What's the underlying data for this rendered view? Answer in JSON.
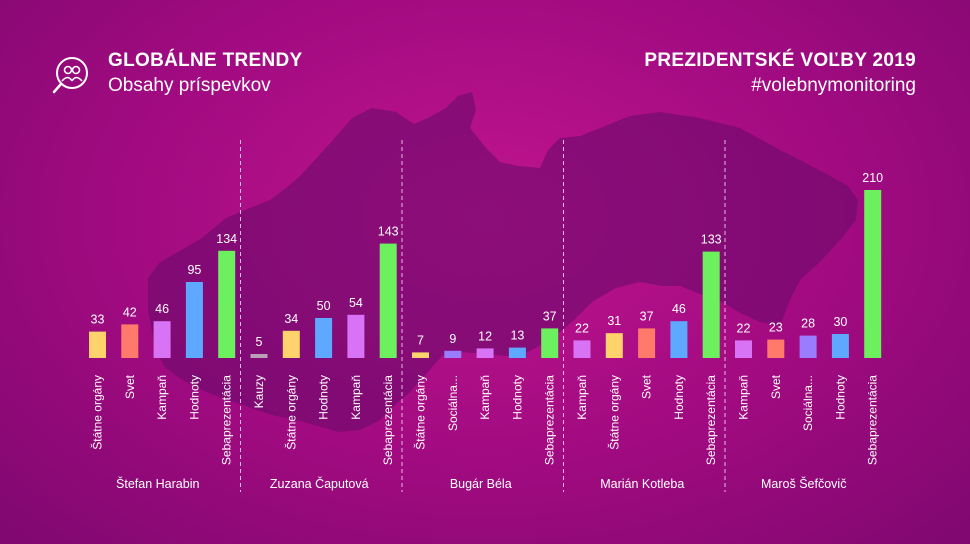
{
  "header": {
    "left_title": "GLOBÁLNE TRENDY",
    "left_subtitle": "Obsahy príspevkov",
    "right_title": "PREZIDENTSKÉ VOĽBY 2019",
    "right_subtitle": "#volebnymonitoring",
    "logo_icon": "magnifier-people-icon"
  },
  "colors": {
    "Štátne orgány": "#ffd36b",
    "Svet": "#ff7a6a",
    "Kampaň": "#d873f5",
    "Hodnoty": "#5fa8ff",
    "Sebaprezentácia": "#6cf05e",
    "Kauzy": "#b8a0b8",
    "Sociálna...": "#9a7cff"
  },
  "chart_data": {
    "type": "bar",
    "ylim": [
      0,
      210
    ],
    "groups": [
      {
        "name": "Štefan Harabin",
        "bars": [
          {
            "label": "Štátne orgány",
            "value": 33
          },
          {
            "label": "Svet",
            "value": 42
          },
          {
            "label": "Kampaň",
            "value": 46
          },
          {
            "label": "Hodnoty",
            "value": 95
          },
          {
            "label": "Sebaprezentácia",
            "value": 134
          }
        ]
      },
      {
        "name": "Zuzana Čaputová",
        "bars": [
          {
            "label": "Kauzy",
            "value": 5
          },
          {
            "label": "Štátne orgány",
            "value": 34
          },
          {
            "label": "Hodnoty",
            "value": 50
          },
          {
            "label": "Kampaň",
            "value": 54
          },
          {
            "label": "Sebaprezentácia",
            "value": 143
          }
        ]
      },
      {
        "name": "Bugár Béla",
        "bars": [
          {
            "label": "Štátne orgány",
            "value": 7
          },
          {
            "label": "Sociálna...",
            "value": 9
          },
          {
            "label": "Kampaň",
            "value": 12
          },
          {
            "label": "Hodnoty",
            "value": 13
          },
          {
            "label": "Sebaprezentácia",
            "value": 37
          }
        ]
      },
      {
        "name": "Marián Kotleba",
        "bars": [
          {
            "label": "Kampaň",
            "value": 22
          },
          {
            "label": "Štátne orgány",
            "value": 31
          },
          {
            "label": "Svet",
            "value": 37
          },
          {
            "label": "Hodnoty",
            "value": 46
          },
          {
            "label": "Sebaprezentácia",
            "value": 133
          }
        ]
      },
      {
        "name": "Maroš Šefčovič",
        "bars": [
          {
            "label": "Kampaň",
            "value": 22
          },
          {
            "label": "Svet",
            "value": 23
          },
          {
            "label": "Sociálna...",
            "value": 28
          },
          {
            "label": "Hodnoty",
            "value": 30
          },
          {
            "label": "Sebaprezentácia",
            "value": 210
          }
        ]
      }
    ]
  }
}
